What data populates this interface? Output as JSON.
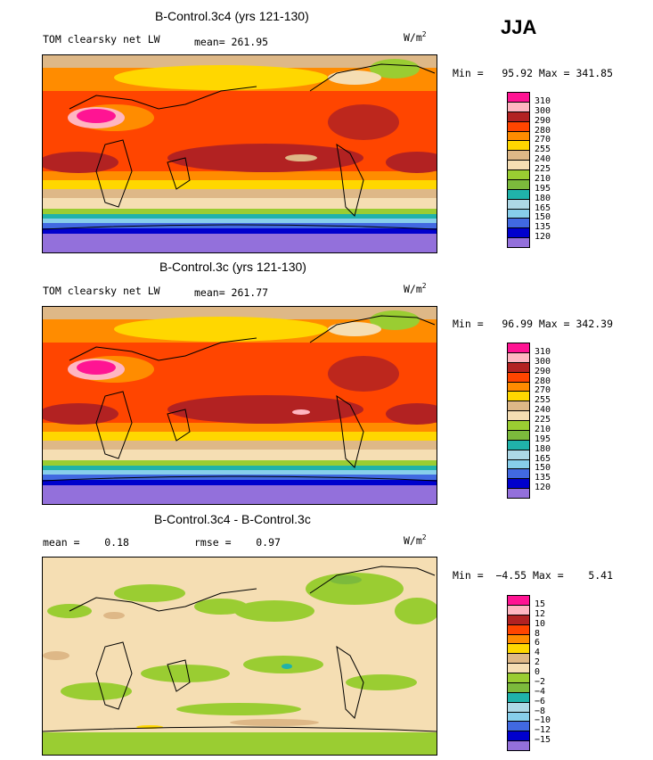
{
  "season": "JJA",
  "units_base": "W/m",
  "units_exp": "2",
  "panels": [
    {
      "title": "B-Control.3c4 (yrs 121-130)",
      "left_text": "TOM clearsky net LW",
      "center_text": "mean= 261.95",
      "minmax": "Min =   95.92 Max = 341.85",
      "type": "field",
      "levels": [
        "310",
        "300",
        "290",
        "280",
        "270",
        "255",
        "240",
        "225",
        "210",
        "195",
        "180",
        "165",
        "150",
        "135",
        "120"
      ]
    },
    {
      "title": "B-Control.3c (yrs 121-130)",
      "left_text": "TOM clearsky net LW",
      "center_text": "mean= 261.77",
      "minmax": "Min =   96.99 Max = 342.39",
      "type": "field",
      "levels": [
        "310",
        "300",
        "290",
        "280",
        "270",
        "255",
        "240",
        "225",
        "210",
        "195",
        "180",
        "165",
        "150",
        "135",
        "120"
      ]
    },
    {
      "title": "B-Control.3c4 - B-Control.3c",
      "left_text": "mean =    0.18",
      "center_text": "rmse =    0.97",
      "minmax": "Min =  −4.55 Max =    5.41",
      "type": "diff",
      "levels": [
        "15",
        "12",
        "10",
        "8",
        "6",
        "4",
        "2",
        "0",
        "−2",
        "−4",
        "−6",
        "−8",
        "−10",
        "−12",
        "−15"
      ]
    }
  ],
  "colors": {
    "field": [
      "#ff1493",
      "#ffb6c1",
      "#b22222",
      "#ff4500",
      "#ff8c00",
      "#ffd700",
      "#deb887",
      "#f5deb3",
      "#9acd32",
      "#7cba3c",
      "#20b2aa",
      "#add8e6",
      "#87ceeb",
      "#4169e1",
      "#0000cd",
      "#9370db"
    ],
    "diff": [
      "#ff1493",
      "#ffb6c1",
      "#b22222",
      "#ff4500",
      "#ff8c00",
      "#ffd700",
      "#deb887",
      "#f5deb3",
      "#9acd32",
      "#7cba3c",
      "#20b2aa",
      "#add8e6",
      "#87ceeb",
      "#4169e1",
      "#0000cd",
      "#9370db"
    ]
  }
}
